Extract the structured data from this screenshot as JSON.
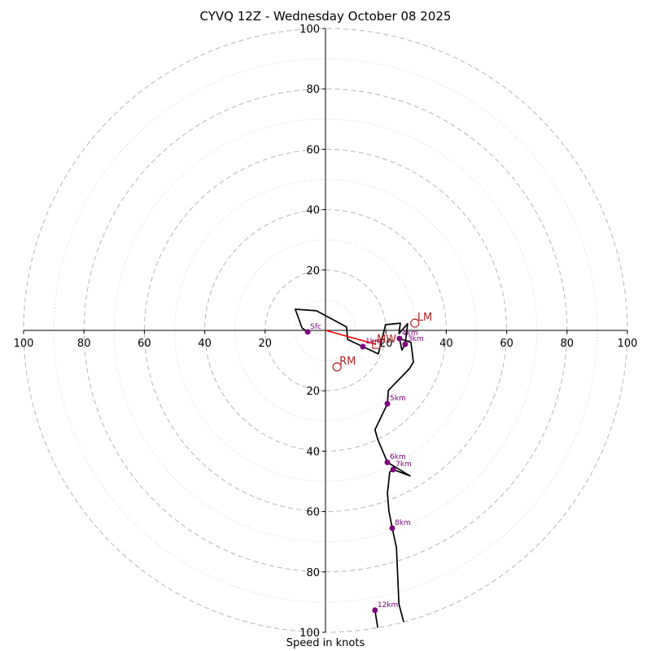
{
  "title": "CYVQ 12Z - Wednesday October 08 2025",
  "colors": {
    "ring": "#bbbbbb",
    "ring_minor": "#cccccc",
    "axis": "#000000",
    "hodograph": "#000000",
    "height_marker": "#800080",
    "storm_motion": "#b22222",
    "mean_wind_vector": "#ff0000"
  },
  "chart_data": {
    "type": "line",
    "subtype": "hodograph",
    "title": "CYVQ 12Z - Wednesday October 08 2025",
    "xlabel": "Speed in knots",
    "ylabel": "",
    "units": "knots",
    "range_kt": 100,
    "rings_major": [
      20,
      40,
      60,
      80,
      100
    ],
    "rings_minor": [
      10,
      30,
      50,
      70,
      90
    ],
    "tick_labels": [
      "20",
      "40",
      "60",
      "80",
      "100"
    ],
    "grid": true,
    "series": [
      {
        "name": "hodograph-lower",
        "points": [
          [
            -5.9,
            -0.5
          ],
          [
            -7.8,
            0.8
          ],
          [
            -10.0,
            7.0
          ],
          [
            -3.0,
            6.5
          ],
          [
            7.0,
            1.1
          ],
          [
            7.3,
            -3.0
          ],
          [
            12.4,
            -5.4
          ],
          [
            17.5,
            -7.8
          ],
          [
            19.9,
            1.9
          ],
          [
            24.8,
            2.4
          ],
          [
            24.3,
            -1.1
          ],
          [
            27.2,
            2.2
          ],
          [
            26.4,
            -4.6
          ],
          [
            25.3,
            -6.5
          ],
          [
            24.5,
            -2.7
          ],
          [
            28.3,
            -4.0
          ],
          [
            29.1,
            -10.5
          ],
          [
            27.8,
            -12.7
          ],
          [
            20.8,
            -19.9
          ],
          [
            20.5,
            -24.3
          ],
          [
            16.4,
            -32.9
          ],
          [
            17.3,
            -36.1
          ],
          [
            20.5,
            -43.7
          ],
          [
            28.0,
            -48.2
          ],
          [
            22.4,
            -46.1
          ],
          [
            21.3,
            -46.9
          ],
          [
            20.5,
            -53.9
          ],
          [
            21.0,
            -59.8
          ],
          [
            22.1,
            -65.5
          ],
          [
            23.5,
            -72.0
          ],
          [
            24.3,
            -90.6
          ],
          [
            26.7,
            -99.7
          ]
        ]
      },
      {
        "name": "hodograph-upper",
        "points": [
          [
            17.5,
            -99.7
          ],
          [
            16.4,
            -92.7
          ]
        ]
      }
    ],
    "height_markers": [
      {
        "label": "Sfc",
        "u": -5.9,
        "v": -0.5
      },
      {
        "label": "1km",
        "u": 12.4,
        "v": -5.4
      },
      {
        "label": "3km",
        "u": 26.4,
        "v": -4.6
      },
      {
        "label": "4km",
        "u": 24.5,
        "v": -2.7
      },
      {
        "label": "5km",
        "u": 20.5,
        "v": -24.3
      },
      {
        "label": "6km",
        "u": 20.5,
        "v": -43.7
      },
      {
        "label": "7km",
        "u": 22.4,
        "v": -46.1
      },
      {
        "label": "8km",
        "u": 22.1,
        "v": -65.5
      },
      {
        "label": "12km",
        "u": 16.4,
        "v": -92.7
      }
    ],
    "storm_motion": [
      {
        "label": "MW",
        "marker": "square",
        "u": 16.7,
        "v": -4.6
      },
      {
        "label": "LM",
        "marker": "circle",
        "u": 29.6,
        "v": 2.4
      },
      {
        "label": "RM",
        "marker": "circle",
        "u": 3.8,
        "v": -12.1
      }
    ],
    "mean_wind_vector": {
      "from": [
        0,
        0
      ],
      "to": [
        16.7,
        -4.6
      ]
    }
  }
}
